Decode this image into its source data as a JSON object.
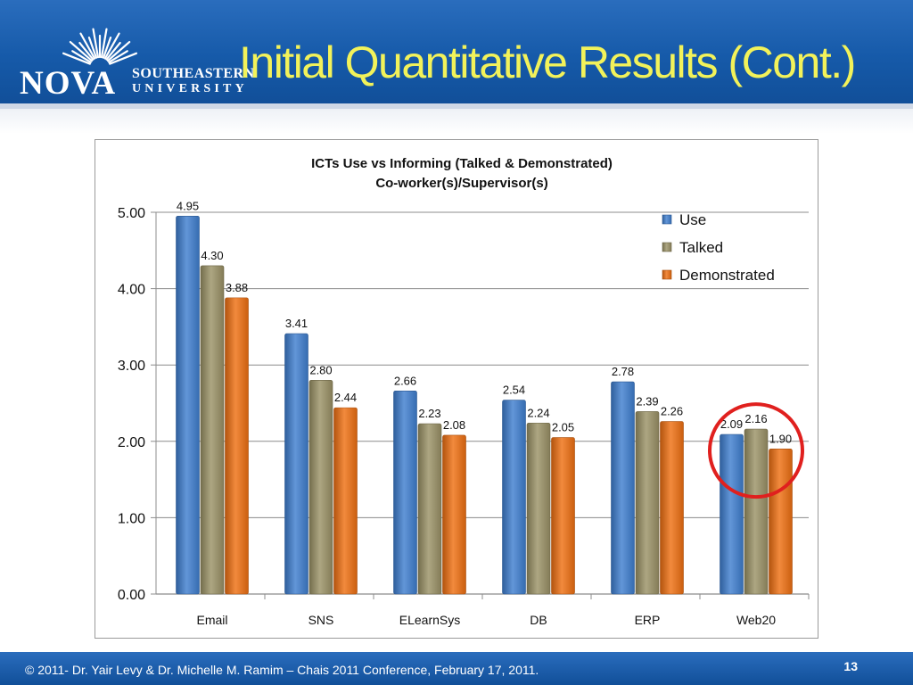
{
  "slide": {
    "title": "Initial Quantitative Results (Cont.)",
    "logo": {
      "word": "NOVA",
      "line1": "SOUTHEASTERN",
      "line2": "UNIVERSITY"
    },
    "footer": "© 2011- Dr. Yair Levy & Dr. Michelle M. Ramim  – Chais 2011 Conference, February 17, 2011.",
    "page_number": "13"
  },
  "colors": {
    "header": "#165aa9",
    "title": "#f2f25a",
    "use": "#3f7fd0",
    "talked": "#9b9266",
    "demonstrated": "#ef7012",
    "highlight_circle": "#e0201e"
  },
  "chart_data": {
    "type": "bar",
    "title_lines": [
      "ICTs Use vs Informing (Talked & Demonstrated)",
      "Co-worker(s)/Supervisor(s)"
    ],
    "categories": [
      "Email",
      "SNS",
      "ELearnSys",
      "DB",
      "ERP",
      "Web20"
    ],
    "series": [
      {
        "name": "Use",
        "values": [
          4.95,
          3.41,
          2.66,
          2.54,
          2.78,
          2.09
        ],
        "labels": [
          "4.95",
          "3.41",
          "2.66",
          "2.54",
          "2.78",
          "2.09"
        ],
        "color": "#3f7fd0"
      },
      {
        "name": "Talked",
        "values": [
          4.3,
          2.8,
          2.23,
          2.24,
          2.39,
          2.16
        ],
        "labels": [
          "4.30",
          "2.80",
          "2.23",
          "2.24",
          "2.39",
          "2.16"
        ],
        "color": "#9b9266"
      },
      {
        "name": "Demonstrated",
        "values": [
          3.88,
          2.44,
          2.08,
          2.05,
          2.26,
          1.9
        ],
        "labels": [
          "3.88",
          "2.44",
          "2.08",
          "2.05",
          "2.26",
          "1.90"
        ],
        "color": "#ef7012"
      }
    ],
    "ylim": [
      0,
      5
    ],
    "yticks": [
      0,
      1,
      2,
      3,
      4,
      5
    ],
    "ytick_labels": [
      "0.00",
      "1.00",
      "2.00",
      "3.00",
      "4.00",
      "5.00"
    ],
    "grid": true,
    "legend": "top-right",
    "highlight": {
      "category": "Web20",
      "shape": "circle"
    }
  }
}
